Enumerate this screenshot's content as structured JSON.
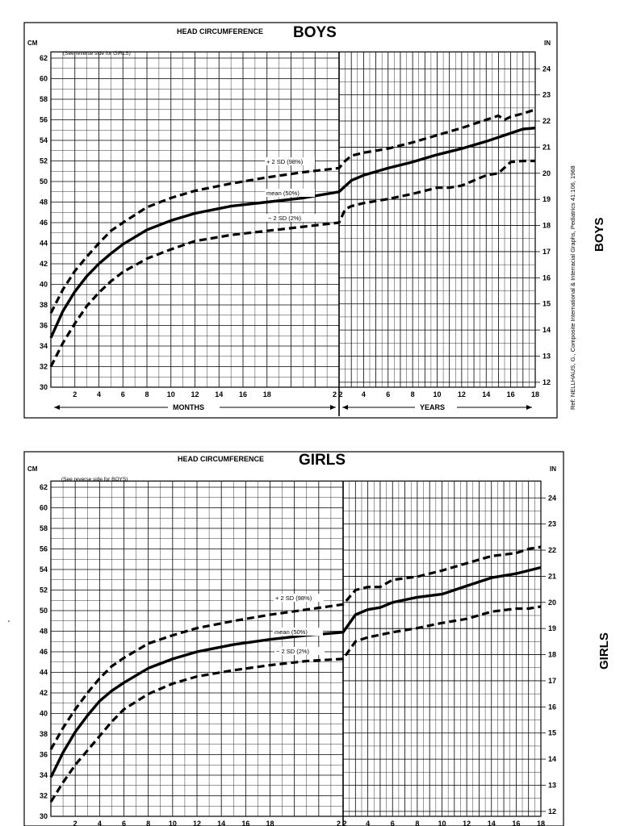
{
  "chart_data": [
    {
      "type": "line",
      "title_prefix": "HEAD CIRCUMFERENCE",
      "title_main": "BOYS",
      "note": "(See reverse side for GIRLS)",
      "side_label": "BOYS",
      "reference": "Ref: NELLHAUS, G., Composite International & Interracial Graphs, Pediatrics 41:106, 1968",
      "left_unit": "CM",
      "right_unit": "IN",
      "cm_ticks": [
        "30",
        "32",
        "34",
        "36",
        "38",
        "40",
        "42",
        "44",
        "46",
        "48",
        "50",
        "52",
        "54",
        "56",
        "58",
        "60",
        "62"
      ],
      "in_ticks": [
        "12",
        "13",
        "14",
        "15",
        "16",
        "17",
        "18",
        "19",
        "20",
        "21",
        "22",
        "23",
        "24"
      ],
      "month_ticks": [
        "2",
        "4",
        "6",
        "8",
        "10",
        "12",
        "14",
        "16",
        "18"
      ],
      "year_ticks": [
        "2",
        "4",
        "6",
        "8",
        "10",
        "12",
        "14",
        "16",
        "18"
      ],
      "months_label": "MONTHS",
      "years_label": "YEARS",
      "ylim_cm": [
        30,
        63
      ],
      "series": [
        {
          "name": "+ 2 SD (98%)",
          "style": "dashed",
          "months": [
            [
              0,
              37.2
            ],
            [
              1,
              39.5
            ],
            [
              2,
              41.3
            ],
            [
              3,
              42.7
            ],
            [
              4,
              44.0
            ],
            [
              5,
              45.2
            ],
            [
              6,
              46.0
            ],
            [
              8,
              47.5
            ],
            [
              10,
              48.4
            ],
            [
              12,
              49.1
            ],
            [
              15,
              49.8
            ],
            [
              18,
              50.4
            ],
            [
              21,
              50.9
            ],
            [
              24,
              51.3
            ]
          ],
          "years": [
            [
              2,
              51.3
            ],
            [
              2.5,
              52.0
            ],
            [
              3,
              52.5
            ],
            [
              4,
              52.8
            ],
            [
              5,
              53.0
            ],
            [
              6,
              53.2
            ],
            [
              8,
              53.8
            ],
            [
              10,
              54.5
            ],
            [
              12,
              55.2
            ],
            [
              14,
              56.0
            ],
            [
              15,
              56.4
            ],
            [
              15.5,
              56.0
            ],
            [
              16,
              56.3
            ],
            [
              17,
              56.6
            ],
            [
              18,
              57.0
            ]
          ]
        },
        {
          "name": "mean (50%)",
          "style": "solid",
          "months": [
            [
              0,
              34.8
            ],
            [
              1,
              37.4
            ],
            [
              2,
              39.3
            ],
            [
              3,
              40.8
            ],
            [
              4,
              42.0
            ],
            [
              5,
              43.0
            ],
            [
              6,
              43.9
            ],
            [
              8,
              45.3
            ],
            [
              10,
              46.2
            ],
            [
              12,
              46.9
            ],
            [
              15,
              47.6
            ],
            [
              18,
              48.0
            ],
            [
              21,
              48.4
            ],
            [
              24,
              49.0
            ]
          ],
          "years": [
            [
              2,
              49.0
            ],
            [
              3,
              50.1
            ],
            [
              4,
              50.6
            ],
            [
              6,
              51.3
            ],
            [
              8,
              51.9
            ],
            [
              10,
              52.6
            ],
            [
              12,
              53.2
            ],
            [
              14,
              53.9
            ],
            [
              16,
              54.7
            ],
            [
              17,
              55.1
            ],
            [
              18,
              55.2
            ]
          ]
        },
        {
          "name": "− 2 SD (2%)",
          "style": "dashed",
          "months": [
            [
              0,
              32.0
            ],
            [
              1,
              34.3
            ],
            [
              2,
              36.2
            ],
            [
              3,
              37.9
            ],
            [
              4,
              39.2
            ],
            [
              5,
              40.3
            ],
            [
              6,
              41.2
            ],
            [
              8,
              42.5
            ],
            [
              10,
              43.4
            ],
            [
              12,
              44.2
            ],
            [
              15,
              44.8
            ],
            [
              18,
              45.2
            ],
            [
              21,
              45.6
            ],
            [
              24,
              46.0
            ]
          ],
          "years": [
            [
              2,
              46.0
            ],
            [
              2.5,
              47.3
            ],
            [
              3,
              47.6
            ],
            [
              4,
              47.9
            ],
            [
              6,
              48.3
            ],
            [
              8,
              48.8
            ],
            [
              10,
              49.4
            ],
            [
              11,
              49.4
            ],
            [
              12,
              49.6
            ],
            [
              14,
              50.6
            ],
            [
              15,
              50.8
            ],
            [
              16,
              51.9
            ],
            [
              17,
              52.0
            ],
            [
              18,
              52.0
            ]
          ]
        }
      ]
    },
    {
      "type": "line",
      "title_prefix": "HEAD CIRCUMFERENCE",
      "title_main": "GIRLS",
      "note": "(See reverse side for BOYS)",
      "side_label": "GIRLS",
      "left_unit": "CM",
      "right_unit": "IN",
      "cm_ticks": [
        "30",
        "32",
        "34",
        "36",
        "38",
        "40",
        "42",
        "44",
        "46",
        "48",
        "50",
        "52",
        "54",
        "56",
        "58",
        "60",
        "62"
      ],
      "in_ticks": [
        "12",
        "13",
        "14",
        "15",
        "16",
        "17",
        "18",
        "19",
        "20",
        "21",
        "22",
        "23",
        "24"
      ],
      "month_ticks": [
        "2",
        "4",
        "6",
        "8",
        "10",
        "12",
        "14",
        "16",
        "18"
      ],
      "year_ticks": [
        "2",
        "4",
        "6",
        "8",
        "10",
        "12",
        "14",
        "16",
        "18"
      ],
      "ylim_cm": [
        30,
        63
      ],
      "series": [
        {
          "name": "+ 2 SD (98%)",
          "style": "dashed",
          "months": [
            [
              0,
              36.5
            ],
            [
              1,
              38.6
            ],
            [
              2,
              40.4
            ],
            [
              3,
              42.0
            ],
            [
              4,
              43.4
            ],
            [
              5,
              44.6
            ],
            [
              6,
              45.4
            ],
            [
              8,
              46.8
            ],
            [
              10,
              47.6
            ],
            [
              12,
              48.3
            ],
            [
              15,
              49.0
            ],
            [
              18,
              49.6
            ],
            [
              21,
              50.1
            ],
            [
              24,
              50.6
            ]
          ],
          "years": [
            [
              2,
              50.6
            ],
            [
              3,
              52.0
            ],
            [
              4,
              52.3
            ],
            [
              5,
              52.3
            ],
            [
              6,
              53.0
            ],
            [
              8,
              53.3
            ],
            [
              10,
              53.9
            ],
            [
              12,
              54.6
            ],
            [
              14,
              55.3
            ],
            [
              16,
              55.6
            ],
            [
              17,
              56.0
            ],
            [
              18,
              56.2
            ]
          ]
        },
        {
          "name": "mean (50%)",
          "style": "solid",
          "months": [
            [
              0,
              33.8
            ],
            [
              1,
              36.2
            ],
            [
              2,
              38.2
            ],
            [
              3,
              39.8
            ],
            [
              4,
              41.2
            ],
            [
              5,
              42.2
            ],
            [
              6,
              43.0
            ],
            [
              8,
              44.4
            ],
            [
              10,
              45.3
            ],
            [
              12,
              46.0
            ],
            [
              15,
              46.7
            ],
            [
              18,
              47.2
            ],
            [
              21,
              47.6
            ],
            [
              24,
              47.9
            ]
          ],
          "years": [
            [
              2,
              47.9
            ],
            [
              3,
              49.6
            ],
            [
              4,
              50.1
            ],
            [
              5,
              50.3
            ],
            [
              6,
              50.8
            ],
            [
              8,
              51.3
            ],
            [
              10,
              51.6
            ],
            [
              12,
              52.4
            ],
            [
              14,
              53.2
            ],
            [
              16,
              53.6
            ],
            [
              18,
              54.2
            ]
          ]
        },
        {
          "name": "− 2 SD (2%)",
          "style": "dashed",
          "months": [
            [
              0,
              31.4
            ],
            [
              1,
              33.3
            ],
            [
              2,
              35.0
            ],
            [
              3,
              36.4
            ],
            [
              4,
              37.8
            ],
            [
              5,
              39.2
            ],
            [
              6,
              40.4
            ],
            [
              8,
              41.9
            ],
            [
              10,
              42.9
            ],
            [
              12,
              43.6
            ],
            [
              15,
              44.2
            ],
            [
              18,
              44.7
            ],
            [
              21,
              45.1
            ],
            [
              24,
              45.3
            ]
          ],
          "years": [
            [
              2,
              45.3
            ],
            [
              3,
              47.0
            ],
            [
              4,
              47.4
            ],
            [
              6,
              47.9
            ],
            [
              8,
              48.3
            ],
            [
              10,
              48.8
            ],
            [
              12,
              49.2
            ],
            [
              14,
              49.9
            ],
            [
              16,
              50.2
            ],
            [
              17,
              50.2
            ],
            [
              18,
              50.4
            ]
          ]
        }
      ]
    }
  ]
}
